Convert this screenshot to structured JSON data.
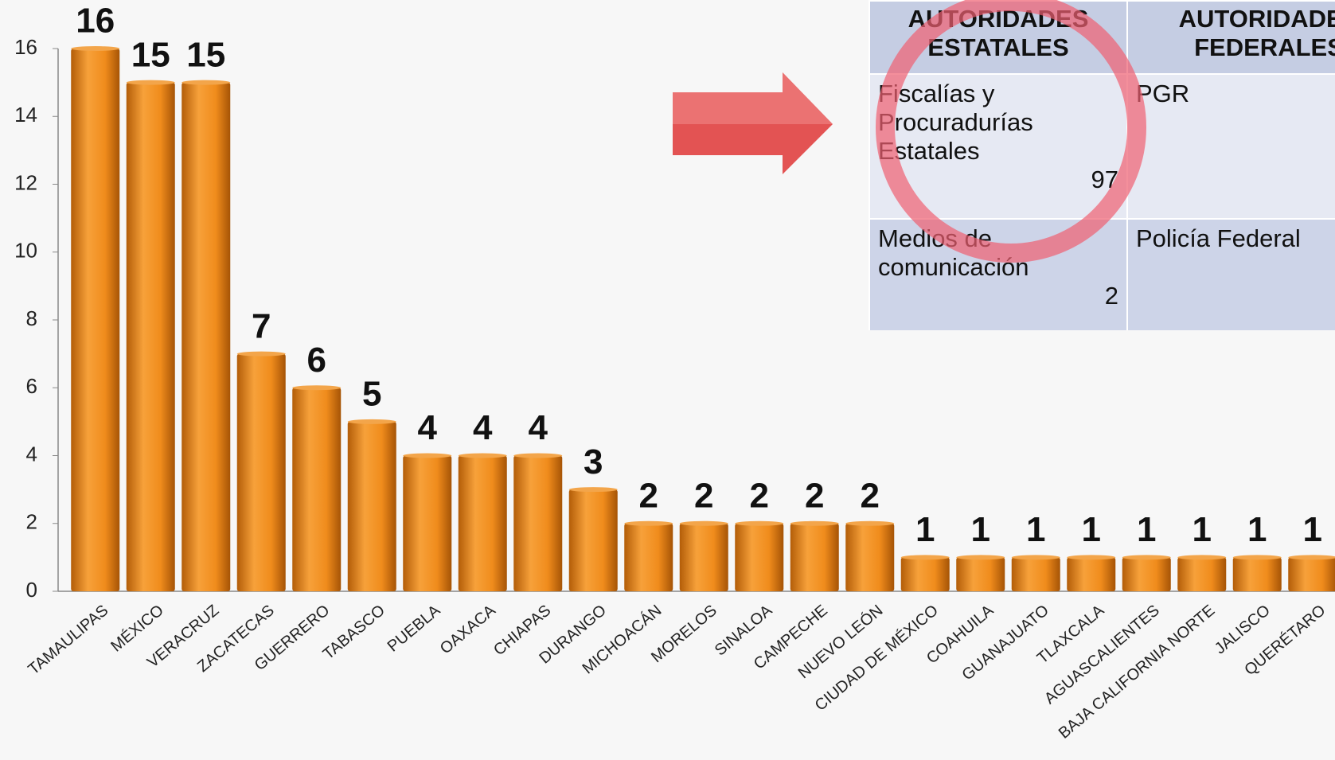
{
  "chart_data": {
    "type": "bar",
    "categories": [
      "TAMAULIPAS",
      "MÉXICO",
      "VERACRUZ",
      "ZACATECAS",
      "GUERRERO",
      "TABASCO",
      "PUEBLA",
      "OAXACA",
      "CHIAPAS",
      "DURANGO",
      "MICHOACÁN",
      "MORELOS",
      "SINALOA",
      "CAMPECHE",
      "NUEVO LEÓN",
      "CIUDAD DE MÉXICO",
      "COAHUILA",
      "GUANAJUATO",
      "TLAXCALA",
      "AGUASCALIENTES",
      "BAJA CALIFORNIA NORTE",
      "JALISCO",
      "QUERÉTARO"
    ],
    "values": [
      16,
      15,
      15,
      7,
      6,
      5,
      4,
      4,
      4,
      3,
      2,
      2,
      2,
      2,
      2,
      1,
      1,
      1,
      1,
      1,
      1,
      1,
      1
    ],
    "color": "#f0901e",
    "ylim": [
      0,
      16
    ],
    "yticks": [
      0,
      2,
      4,
      6,
      8,
      10,
      12,
      14,
      16
    ],
    "grid": false
  },
  "table": {
    "headers": [
      "AUTORIDADES ESTATALES",
      "AUTORIDADES FEDERALES"
    ],
    "rows": [
      [
        {
          "text": "Fiscalías y Procuradurías Estatales",
          "value": 97
        },
        {
          "text": "PGR"
        }
      ],
      [
        {
          "text": "Medios de comunicación",
          "value": 2
        },
        {
          "text": "Policía Federal"
        }
      ]
    ]
  }
}
